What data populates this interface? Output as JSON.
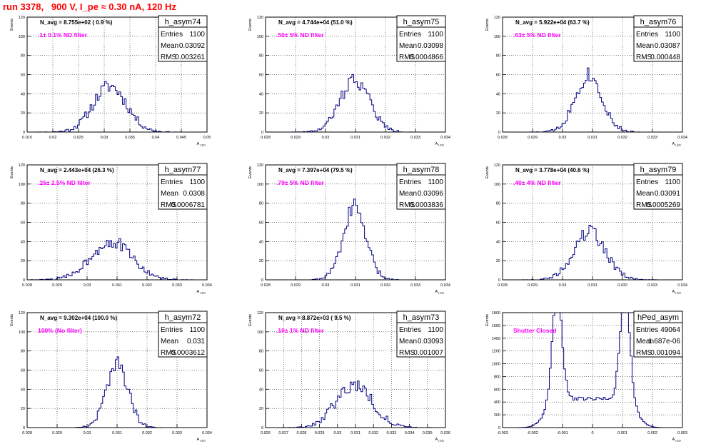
{
  "title": "run 3378,   900 V, I_pe ≈ 0.30 nA, 120 Hz",
  "stat_labels": {
    "entries": "Entries",
    "mean": "Mean",
    "rms": "RMS"
  },
  "ylabel": "Events",
  "xlabel": "A",
  "xlabel_sub": "LED",
  "chart_data": [
    {
      "type": "bar",
      "name": "h_asym74",
      "navg": "N_avg = 8.755e+02 ( 0.9 %)",
      "filter": ".1± 0.1% ND filter",
      "entries": "1100",
      "mean": "0.03092",
      "rms": "0.003261",
      "xlim": [
        0.015,
        0.05
      ],
      "ylim": [
        0,
        120
      ],
      "xticks": [
        0.015,
        0.02,
        0.025,
        0.03,
        0.035,
        0.04,
        0.045,
        0.05
      ],
      "xtick_labels": [
        "0.015",
        "0.02",
        "0.025",
        "0.03",
        "0.035",
        "0.04",
        "0.045",
        "0.05"
      ],
      "yticks": [
        0,
        20,
        40,
        60,
        80,
        100,
        120
      ],
      "peak": 0.0311,
      "sigma": 0.00326,
      "height": 48,
      "seed": 11
    },
    {
      "type": "bar",
      "name": "h_asym75",
      "navg": "N_avg = 4.744e+04 (51.0 %)",
      "filter": ".50± 5% ND filter",
      "entries": "1100",
      "mean": "0.03098",
      "rms": "0.0004866",
      "xlim": [
        0.028,
        0.034
      ],
      "ylim": [
        0,
        120
      ],
      "xticks": [
        0.028,
        0.029,
        0.03,
        0.031,
        0.032,
        0.033,
        0.034
      ],
      "xtick_labels": [
        "0.028",
        "0.029",
        "0.03",
        "0.031",
        "0.032",
        "0.033",
        "0.034"
      ],
      "yticks": [
        0,
        20,
        40,
        60,
        80,
        100,
        120
      ],
      "peak": 0.03098,
      "sigma": 0.000487,
      "height": 55,
      "seed": 22
    },
    {
      "type": "bar",
      "name": "h_asym76",
      "navg": "N_avg = 5.922e+04 (63.7 %)",
      "filter": ".63± 5% ND filter",
      "entries": "1100",
      "mean": "0.03087",
      "rms": "0.000448",
      "xlim": [
        0.028,
        0.034
      ],
      "ylim": [
        0,
        120
      ],
      "xticks": [
        0.028,
        0.029,
        0.03,
        0.031,
        0.032,
        0.033,
        0.034
      ],
      "xtick_labels": [
        "0.028",
        "0.029",
        "0.03",
        "0.031",
        "0.032",
        "0.033",
        "0.034"
      ],
      "yticks": [
        0,
        20,
        40,
        60,
        80,
        100,
        120
      ],
      "peak": 0.03087,
      "sigma": 0.000448,
      "height": 60,
      "seed": 33
    },
    {
      "type": "bar",
      "name": "h_asym77",
      "navg": "N_avg = 2.443e+04 (26.3 %)",
      "filter": ".25± 2.5% ND filter",
      "entries": "1100",
      "mean": "0.0308",
      "rms": "0.0006781",
      "xlim": [
        0.028,
        0.034
      ],
      "ylim": [
        0,
        120
      ],
      "xticks": [
        0.028,
        0.029,
        0.03,
        0.031,
        0.032,
        0.033,
        0.034
      ],
      "xtick_labels": [
        "0.028",
        "0.029",
        "0.03",
        "0.031",
        "0.032",
        "0.033",
        "0.034"
      ],
      "yticks": [
        0,
        20,
        40,
        60,
        80,
        100,
        120
      ],
      "peak": 0.0308,
      "sigma": 0.000678,
      "height": 40,
      "seed": 44
    },
    {
      "type": "bar",
      "name": "h_asym78",
      "navg": "N_avg = 7.397e+04 (79.5 %)",
      "filter": ".79± 5% ND filter",
      "entries": "1100",
      "mean": "0.03096",
      "rms": "0.0003836",
      "xlim": [
        0.028,
        0.034
      ],
      "ylim": [
        0,
        120
      ],
      "xticks": [
        0.028,
        0.029,
        0.03,
        0.031,
        0.032,
        0.033,
        0.034
      ],
      "xtick_labels": [
        "0.028",
        "0.029",
        "0.03",
        "0.031",
        "0.032",
        "0.033",
        "0.034"
      ],
      "yticks": [
        0,
        20,
        40,
        60,
        80,
        100,
        120
      ],
      "peak": 0.03096,
      "sigma": 0.000384,
      "height": 75,
      "seed": 55
    },
    {
      "type": "bar",
      "name": "h_asym79",
      "navg": "N_avg = 3.778e+04 (40.6 %)",
      "filter": ".40± 4% ND filter",
      "entries": "1100",
      "mean": "0.03091",
      "rms": "0.0005269",
      "xlim": [
        0.028,
        0.034
      ],
      "ylim": [
        0,
        120
      ],
      "xticks": [
        0.028,
        0.029,
        0.03,
        0.031,
        0.032,
        0.033,
        0.034
      ],
      "xtick_labels": [
        "0.028",
        "0.029",
        "0.03",
        "0.031",
        "0.032",
        "0.033",
        "0.034"
      ],
      "yticks": [
        0,
        20,
        40,
        60,
        80,
        100,
        120
      ],
      "peak": 0.03091,
      "sigma": 0.000527,
      "height": 50,
      "seed": 66
    },
    {
      "type": "bar",
      "name": "h_asym72",
      "navg": "N_avg = 9.302e+04 (100.0 %)",
      "filter": "100% (No filter)",
      "entries": "1100",
      "mean": "0.031",
      "rms": "0.0003612",
      "xlim": [
        0.028,
        0.034
      ],
      "ylim": [
        0,
        120
      ],
      "xticks": [
        0.028,
        0.029,
        0.03,
        0.031,
        0.032,
        0.033,
        0.034
      ],
      "xtick_labels": [
        "0.028",
        "0.029",
        "0.03",
        "0.031",
        "0.032",
        "0.033",
        "0.034"
      ],
      "yticks": [
        0,
        20,
        40,
        60,
        80,
        100,
        120
      ],
      "peak": 0.031,
      "sigma": 0.000361,
      "height": 66,
      "seed": 77
    },
    {
      "type": "bar",
      "name": "h_asym73",
      "navg": "N_avg = 8.872e+03 ( 9.5 %)",
      "filter": ".10± 1% ND filter",
      "entries": "1100",
      "mean": "0.03093",
      "rms": "0.001007",
      "xlim": [
        0.026,
        0.036
      ],
      "ylim": [
        0,
        120
      ],
      "xticks": [
        0.026,
        0.027,
        0.028,
        0.029,
        0.03,
        0.031,
        0.032,
        0.033,
        0.034,
        0.035,
        0.036
      ],
      "xtick_labels": [
        "0.026",
        "0.027",
        "0.028",
        "0.029",
        "0.03",
        "0.031",
        "0.032",
        "0.033",
        "0.034",
        "0.035",
        "0.036"
      ],
      "yticks": [
        0,
        20,
        40,
        60,
        80,
        100,
        120
      ],
      "peak": 0.03093,
      "sigma": 0.001007,
      "height": 45,
      "seed": 88
    },
    {
      "type": "bar",
      "name": "hPed_asym",
      "navg": "",
      "filter": "Shutter Closed",
      "entries": "49064",
      "mean": "1.687e-06",
      "rms": "0.001094",
      "xlim": [
        -0.003,
        0.003
      ],
      "ylim": [
        0,
        1800
      ],
      "xticks": [
        -0.003,
        -0.002,
        -0.001,
        0,
        0.001,
        0.002,
        0.003
      ],
      "xtick_labels": [
        "-0.003",
        "-0.002",
        "-0.001",
        "0",
        "0.001",
        "0.002",
        "0.003"
      ],
      "yticks": [
        0,
        200,
        400,
        600,
        800,
        1000,
        1200,
        1400,
        1600,
        1800
      ],
      "bimodal": true,
      "peaks": [
        -0.00118,
        0.00108
      ],
      "sigma": 0.00016,
      "height": 1650,
      "floor": 450,
      "seed": 99
    }
  ],
  "colors": {
    "title": "#ff0000",
    "filter_label": "#ff00ff",
    "hist": "#000080",
    "grid": "#000000",
    "axis": "#000000"
  }
}
